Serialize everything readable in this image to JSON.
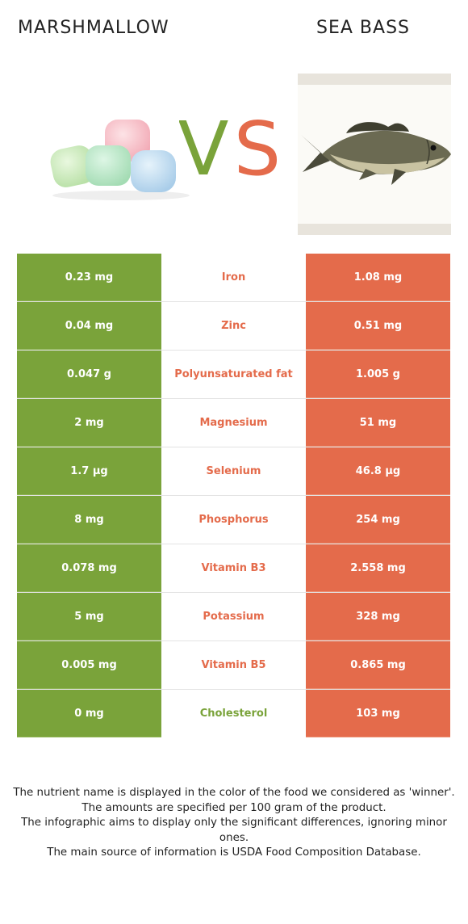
{
  "header": {
    "left_food": "MARSHMALLOW",
    "right_food": "SEA BASS",
    "vs_v": "V",
    "vs_s": "S"
  },
  "colors": {
    "left": "#7aa33a",
    "right": "#e46b4b"
  },
  "rows": [
    {
      "left": "0.23 mg",
      "nutrient": "Iron",
      "right": "1.08 mg",
      "winner": "right"
    },
    {
      "left": "0.04 mg",
      "nutrient": "Zinc",
      "right": "0.51 mg",
      "winner": "right"
    },
    {
      "left": "0.047 g",
      "nutrient": "Polyunsaturated fat",
      "right": "1.005 g",
      "winner": "right"
    },
    {
      "left": "2 mg",
      "nutrient": "Magnesium",
      "right": "51 mg",
      "winner": "right"
    },
    {
      "left": "1.7 µg",
      "nutrient": "Selenium",
      "right": "46.8 µg",
      "winner": "right"
    },
    {
      "left": "8 mg",
      "nutrient": "Phosphorus",
      "right": "254 mg",
      "winner": "right"
    },
    {
      "left": "0.078 mg",
      "nutrient": "Vitamin B3",
      "right": "2.558 mg",
      "winner": "right"
    },
    {
      "left": "5 mg",
      "nutrient": "Potassium",
      "right": "328 mg",
      "winner": "right"
    },
    {
      "left": "0.005 mg",
      "nutrient": "Vitamin B5",
      "right": "0.865 mg",
      "winner": "right"
    },
    {
      "left": "0 mg",
      "nutrient": "Cholesterol",
      "right": "103 mg",
      "winner": "left"
    }
  ],
  "footer": {
    "line1": "The nutrient name is displayed in the color of the food we considered as 'winner'.",
    "line2": "The amounts are specified per 100 gram of the product.",
    "line3": "The infographic aims to display only the significant differences, ignoring minor ones.",
    "line4": "The main source of information is USDA Food Composition Database."
  }
}
